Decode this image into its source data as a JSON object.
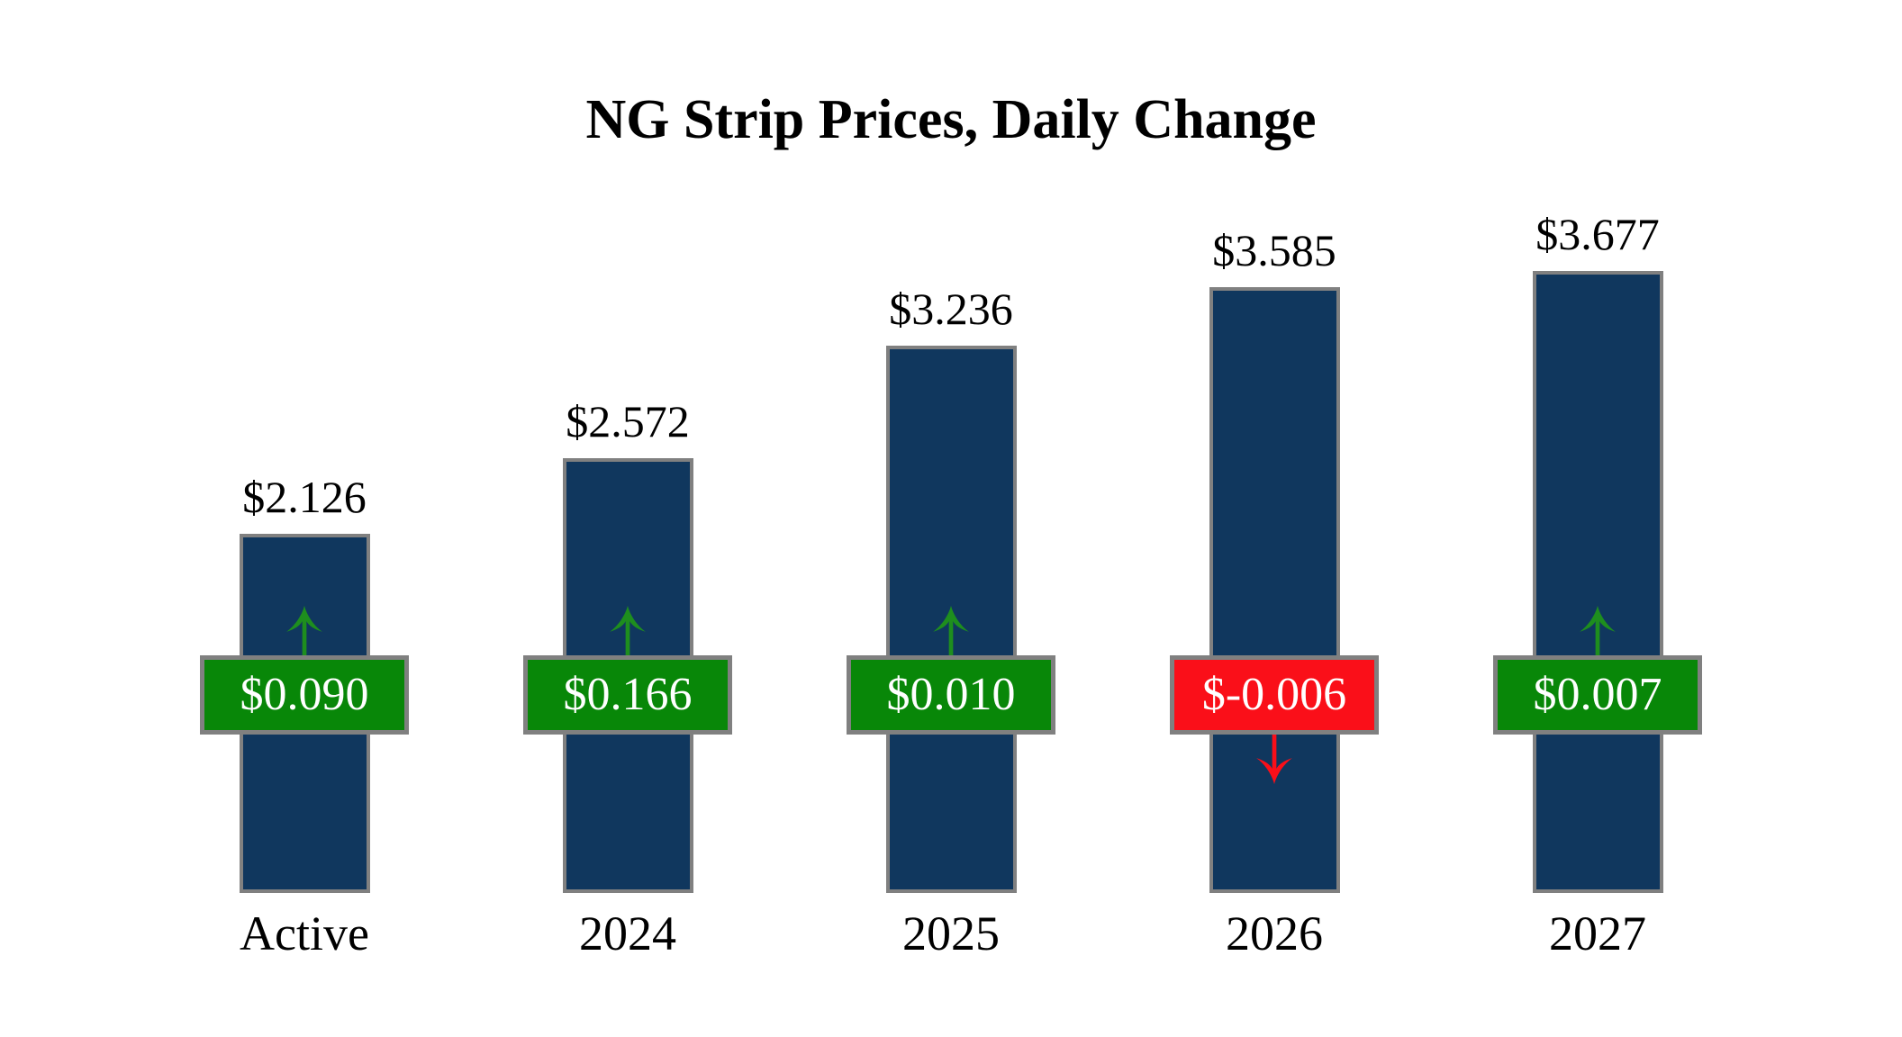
{
  "title": "NG Strip Prices, Daily Change",
  "colors": {
    "bar_fill": "#10375E",
    "bar_border": "#808080",
    "badge_up_fill": "#088708",
    "badge_down_fill": "#FA0F19",
    "badge_border": "#808080",
    "badge_text": "#FFFFFF",
    "arrow_up": "#1E8E1E",
    "arrow_down": "#FA0F19",
    "label_text": "#000000"
  },
  "icons": {
    "up": "up-arrow-icon",
    "down": "down-arrow-icon"
  },
  "chart_data": {
    "type": "bar",
    "title": "NG Strip Prices, Daily Change",
    "categories": [
      "Active",
      "2024",
      "2025",
      "2026",
      "2027"
    ],
    "series": [
      {
        "name": "Strip Price",
        "values": [
          2.126,
          2.572,
          3.236,
          3.585,
          3.677
        ],
        "labels": [
          "$2.126",
          "$2.572",
          "$3.236",
          "$3.585",
          "$3.677"
        ]
      },
      {
        "name": "Daily Change",
        "values": [
          0.09,
          0.166,
          0.01,
          -0.006,
          0.007
        ],
        "labels": [
          "$0.090",
          "$0.166",
          "$0.010",
          "$-0.006",
          "$0.007"
        ],
        "directions": [
          "up",
          "up",
          "up",
          "down",
          "up"
        ]
      }
    ],
    "xlabel": "",
    "ylabel": "",
    "ylim": [
      0,
      3.677
    ],
    "grid": false,
    "legend": "none"
  }
}
